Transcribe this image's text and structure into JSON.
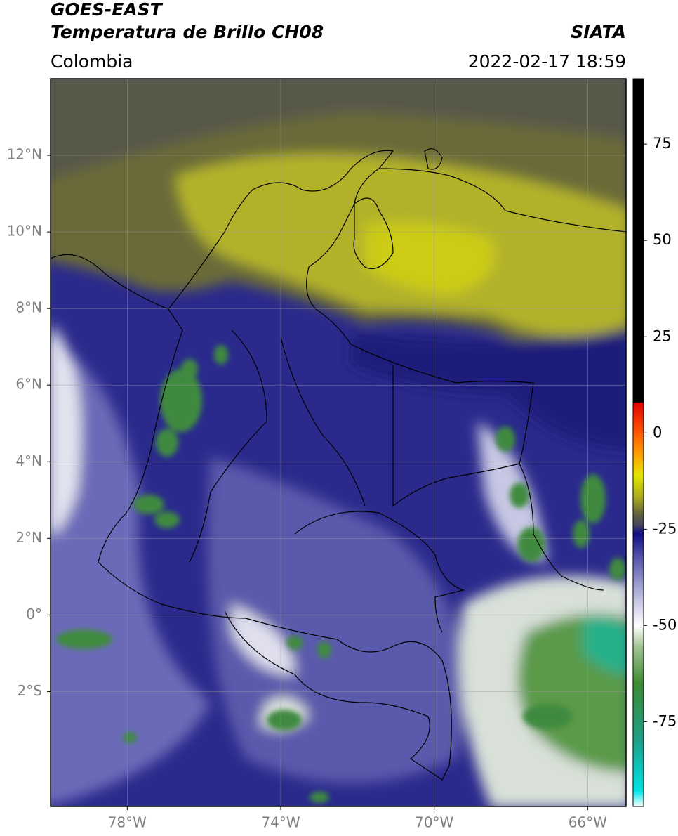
{
  "chart_data": {
    "type": "map",
    "title": "GOES-EAST",
    "subtitle": "Temperatura de Brillo CH08",
    "region": "Colombia",
    "source": "SIATA",
    "timestamp": "2022-02-17 18:59",
    "xlim": [
      -80,
      -65
    ],
    "ylim": [
      -5,
      14
    ],
    "xticks": [
      {
        "value": -78,
        "label": "78°W"
      },
      {
        "value": -74,
        "label": "74°W"
      },
      {
        "value": -70,
        "label": "70°W"
      },
      {
        "value": -66,
        "label": "66°W"
      }
    ],
    "yticks": [
      {
        "value": 12,
        "label": "12°N"
      },
      {
        "value": 10,
        "label": "10°N"
      },
      {
        "value": 8,
        "label": "8°N"
      },
      {
        "value": 6,
        "label": "6°N"
      },
      {
        "value": 4,
        "label": "4°N"
      },
      {
        "value": 2,
        "label": "2°N"
      },
      {
        "value": 0,
        "label": "0°"
      },
      {
        "value": -2,
        "label": "2°S"
      }
    ],
    "grid": true,
    "colorbar": {
      "lim": [
        -97,
        92
      ],
      "ticks": [
        75,
        50,
        25,
        0,
        -25,
        -50,
        -75
      ],
      "stops": [
        [
          -97,
          "#ffffff"
        ],
        [
          -93,
          "#00e5e5"
        ],
        [
          -80,
          "#1f9f8a"
        ],
        [
          -65,
          "#3d8a33"
        ],
        [
          -55,
          "#a8c89a"
        ],
        [
          -50,
          "#ffffff"
        ],
        [
          -40,
          "#a4a4d4"
        ],
        [
          -30,
          "#3c3c9c"
        ],
        [
          -26,
          "#0c0c80"
        ],
        [
          -24,
          "#45455e"
        ],
        [
          -21,
          "#62623e"
        ],
        [
          -17,
          "#a6a622"
        ],
        [
          -11,
          "#e6e600"
        ],
        [
          -5,
          "#ff9a00"
        ],
        [
          0,
          "#ff5a00"
        ],
        [
          8,
          "#e00000"
        ],
        [
          8,
          "#000000"
        ],
        [
          92,
          "#000000"
        ]
      ]
    }
  }
}
